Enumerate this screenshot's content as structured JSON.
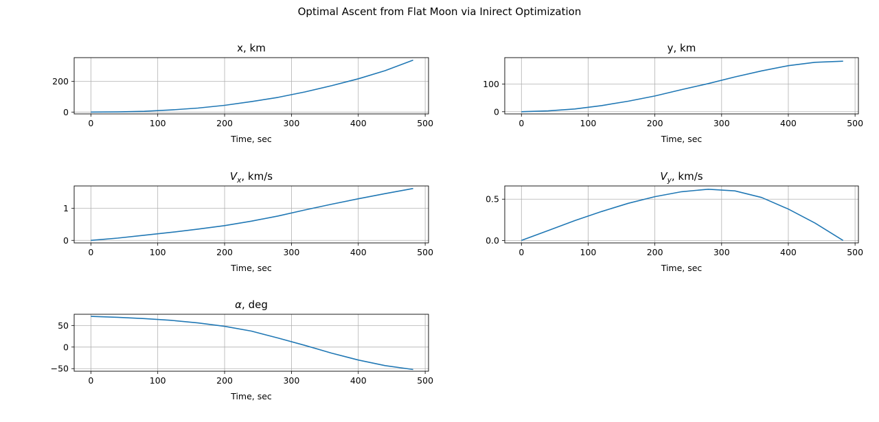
{
  "figure": {
    "title": "Optimal Ascent from Flat Moon via Inirect Optimization"
  },
  "chart_data": [
    {
      "type": "line",
      "title": "x, km",
      "title_math": null,
      "xlabel": "Time, sec",
      "ylabel": "",
      "xlim": [
        -25,
        505
      ],
      "ylim": [
        -12,
        355
      ],
      "xticks": [
        0,
        100,
        200,
        300,
        400,
        500
      ],
      "yticks": [
        0,
        200
      ],
      "grid": true,
      "color": "#1f77b4",
      "series": [
        {
          "x": [
            0,
            40,
            80,
            120,
            160,
            200,
            240,
            280,
            320,
            360,
            400,
            440,
            482
          ],
          "values": [
            0,
            1,
            5,
            14,
            26,
            44,
            68,
            96,
            131,
            172,
            217,
            270,
            339
          ]
        }
      ]
    },
    {
      "type": "line",
      "title": "y, km",
      "title_math": null,
      "xlabel": "Time, sec",
      "ylabel": "",
      "xlim": [
        -25,
        505
      ],
      "ylim": [
        -8,
        196
      ],
      "xticks": [
        0,
        100,
        200,
        300,
        400,
        500
      ],
      "yticks": [
        0,
        100
      ],
      "grid": true,
      "color": "#1f77b4",
      "series": [
        {
          "x": [
            0,
            40,
            80,
            120,
            160,
            200,
            240,
            280,
            320,
            360,
            400,
            440,
            482
          ],
          "values": [
            0,
            3,
            10,
            22,
            38,
            57,
            80,
            102,
            126,
            148,
            167,
            179,
            183
          ]
        }
      ]
    },
    {
      "type": "line",
      "title": "",
      "title_math": {
        "base": "V",
        "sub": "x",
        "rest": ", km/s"
      },
      "xlabel": "Time, sec",
      "ylabel": "",
      "xlim": [
        -25,
        505
      ],
      "ylim": [
        -0.08,
        1.7
      ],
      "xticks": [
        0,
        100,
        200,
        300,
        400,
        500
      ],
      "yticks": [
        0,
        1
      ],
      "grid": true,
      "color": "#1f77b4",
      "series": [
        {
          "x": [
            0,
            40,
            80,
            120,
            160,
            200,
            240,
            280,
            320,
            360,
            400,
            440,
            482
          ],
          "values": [
            0,
            0.07,
            0.16,
            0.25,
            0.35,
            0.46,
            0.6,
            0.76,
            0.95,
            1.13,
            1.3,
            1.46,
            1.62
          ]
        }
      ]
    },
    {
      "type": "line",
      "title": "",
      "title_math": {
        "base": "V",
        "sub": "y",
        "rest": ", km/s"
      },
      "xlabel": "Time, sec",
      "ylabel": "",
      "xlim": [
        -25,
        505
      ],
      "ylim": [
        -0.03,
        0.66
      ],
      "xticks": [
        0,
        100,
        200,
        300,
        400,
        500
      ],
      "yticks": [
        0.0,
        0.5
      ],
      "grid": true,
      "color": "#1f77b4",
      "series": [
        {
          "x": [
            0,
            40,
            80,
            120,
            160,
            200,
            240,
            280,
            320,
            360,
            400,
            440,
            482
          ],
          "values": [
            0,
            0.12,
            0.24,
            0.35,
            0.45,
            0.53,
            0.59,
            0.62,
            0.6,
            0.52,
            0.38,
            0.21,
            0.0
          ]
        }
      ]
    },
    {
      "type": "line",
      "title": "",
      "title_math": {
        "base": "α",
        "sub": "",
        "rest": ", deg"
      },
      "xlabel": "Time, sec",
      "ylabel": "",
      "xlim": [
        -25,
        505
      ],
      "ylim": [
        -56,
        76
      ],
      "xticks": [
        0,
        100,
        200,
        300,
        400,
        500
      ],
      "yticks": [
        -50,
        0,
        50
      ],
      "grid": true,
      "color": "#1f77b4",
      "series": [
        {
          "x": [
            0,
            40,
            80,
            120,
            160,
            200,
            240,
            280,
            320,
            360,
            400,
            440,
            482
          ],
          "values": [
            71,
            69,
            66,
            62,
            56,
            48,
            37,
            21,
            4,
            -14,
            -30,
            -43,
            -52
          ]
        }
      ]
    }
  ]
}
